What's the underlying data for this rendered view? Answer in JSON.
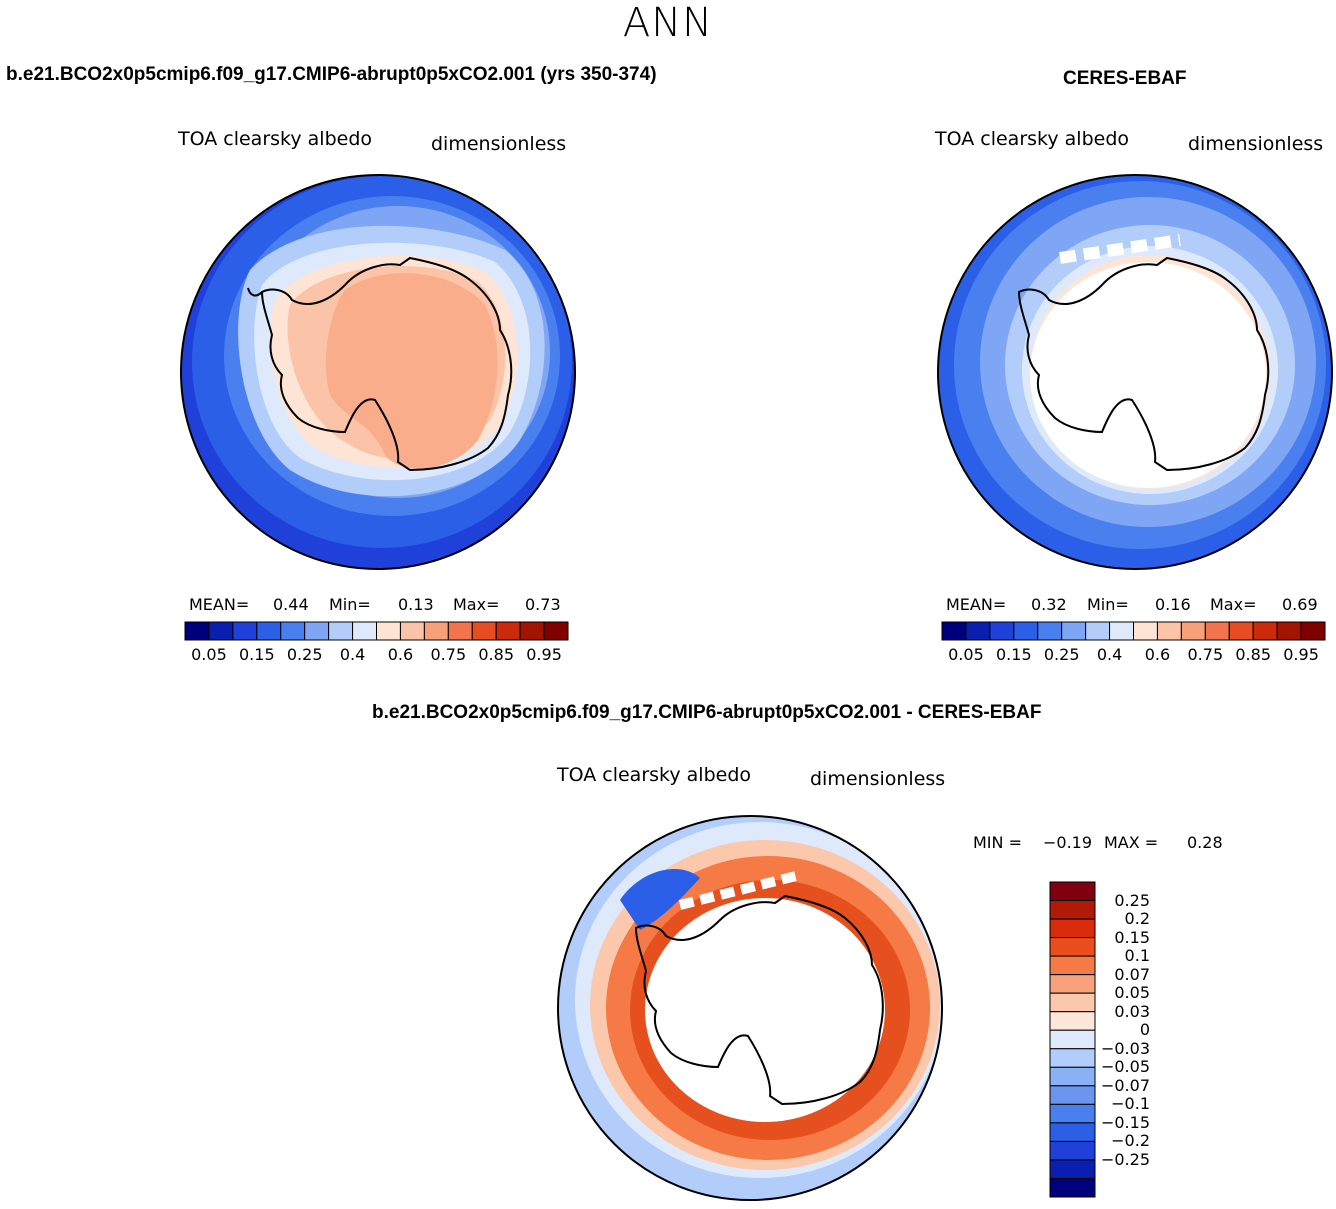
{
  "season": "ANN",
  "panels": {
    "model": {
      "title": "b.e21.BCO2x0p5cmip6.f09_g17.CMIP6-abrupt0p5xCO2.001 (yrs 350-374)",
      "variable": "TOA clearsky albedo",
      "units": "dimensionless",
      "mean_label": "MEAN=",
      "mean": "0.44",
      "min_label": "Min=",
      "min": "0.13",
      "max_label": "Max=",
      "max": "0.73"
    },
    "obs": {
      "title": "CERES-EBAF",
      "variable": "TOA clearsky albedo",
      "units": "dimensionless",
      "mean_label": "MEAN=",
      "mean": "0.32",
      "min_label": "Min=",
      "min": "0.16",
      "max_label": "Max=",
      "max": "0.69"
    },
    "diff": {
      "title": "b.e21.BCO2x0p5cmip6.f09_g17.CMIP6-abrupt0p5xCO2.001 - CERES-EBAF",
      "variable": "TOA clearsky albedo",
      "units": "dimensionless",
      "min_label": "MIN =",
      "min": "−0.19",
      "max_label": "MAX =",
      "max": "0.28"
    }
  },
  "colorbar_abs": {
    "colors": [
      "#00007f",
      "#0a1fb0",
      "#1f40d9",
      "#2b5fe8",
      "#4a7ff0",
      "#7fa6f5",
      "#b3cdfa",
      "#deeafb",
      "#fde4d4",
      "#fbc3a8",
      "#f7a07a",
      "#f2734e",
      "#e64d23",
      "#cc2a0a",
      "#a31400",
      "#800000"
    ],
    "tick_labels": [
      "0.05",
      "0.15",
      "0.25",
      "0.4",
      "0.6",
      "0.75",
      "0.85",
      "0.95"
    ]
  },
  "colorbar_diff": {
    "colors": [
      "#80000f",
      "#b01a06",
      "#d92c0a",
      "#ec4d1c",
      "#f57a45",
      "#f9a17a",
      "#fbc8ab",
      "#fde6da",
      "#deeafb",
      "#b3cdfa",
      "#8ab0f5",
      "#6c95ef",
      "#4a7ff0",
      "#2b5fe8",
      "#1f40d9",
      "#0a1fb0",
      "#00007f"
    ],
    "labels": [
      "0.25",
      "0.2",
      "0.15",
      "0.1",
      "0.07",
      "0.05",
      "0.03",
      "0",
      "−0.03",
      "−0.05",
      "−0.07",
      "−0.1",
      "−0.15",
      "−0.2",
      "−0.25"
    ]
  },
  "chart_data": [
    {
      "type": "heatmap",
      "title": "b.e21.BCO2x0p5cmip6.f09_g17.CMIP6-abrupt0p5xCO2.001 (yrs 350-374)",
      "variable": "TOA clearsky albedo",
      "units": "dimensionless",
      "projection": "south polar stereographic",
      "mean": 0.44,
      "min": 0.13,
      "max": 0.73,
      "contour_levels": [
        0.05,
        0.1,
        0.15,
        0.2,
        0.25,
        0.3,
        0.35,
        0.4,
        0.5,
        0.6,
        0.65,
        0.7,
        0.75,
        0.8,
        0.85,
        0.9,
        0.95
      ]
    },
    {
      "type": "heatmap",
      "title": "CERES-EBAF",
      "variable": "TOA clearsky albedo",
      "units": "dimensionless",
      "projection": "south polar stereographic",
      "mean": 0.32,
      "min": 0.16,
      "max": 0.69,
      "contour_levels": [
        0.05,
        0.1,
        0.15,
        0.2,
        0.25,
        0.3,
        0.35,
        0.4,
        0.5,
        0.6,
        0.65,
        0.7,
        0.75,
        0.8,
        0.85,
        0.9,
        0.95
      ]
    },
    {
      "type": "heatmap",
      "title": "b.e21.BCO2x0p5cmip6.f09_g17.CMIP6-abrupt0p5xCO2.001 - CERES-EBAF",
      "variable": "TOA clearsky albedo",
      "units": "dimensionless",
      "projection": "south polar stereographic",
      "min": -0.19,
      "max": 0.28,
      "contour_levels": [
        -0.25,
        -0.2,
        -0.15,
        -0.1,
        -0.07,
        -0.05,
        -0.03,
        0,
        0.03,
        0.05,
        0.07,
        0.1,
        0.15,
        0.2,
        0.25
      ]
    }
  ]
}
